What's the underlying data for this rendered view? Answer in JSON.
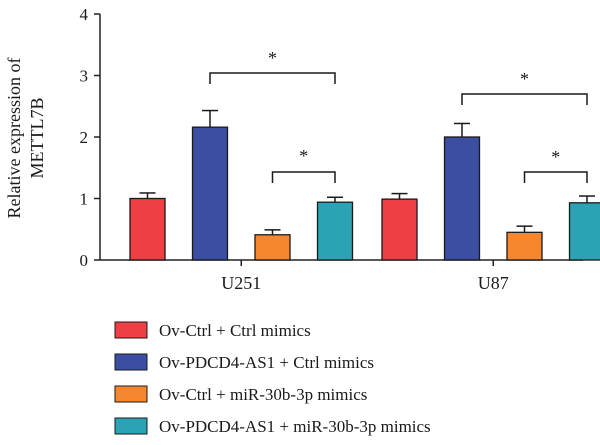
{
  "chart_data": {
    "type": "bar",
    "ylabel_lines": [
      "Relative expression of",
      "METTL7B"
    ],
    "ylim": [
      0,
      4
    ],
    "yticks": [
      "0",
      "1",
      "2",
      "3",
      "4"
    ],
    "categories": [
      "U251",
      "U87"
    ],
    "series": [
      {
        "name": "Ov-Ctrl + Ctrl mimics",
        "color": "#ee3f45",
        "values": [
          1.0,
          0.99
        ],
        "errors": [
          0.09,
          0.09
        ]
      },
      {
        "name": "Ov-PDCD4-AS1 + Ctrl mimics",
        "color": "#3b4ea2",
        "values": [
          2.16,
          2.0
        ],
        "errors": [
          0.27,
          0.22
        ]
      },
      {
        "name": "Ov-Ctrl + miR-30b-3p mimics",
        "color": "#f7872f",
        "values": [
          0.41,
          0.45
        ],
        "errors": [
          0.08,
          0.1
        ]
      },
      {
        "name": "Ov-PDCD4-AS1 + miR-30b-3p mimics",
        "color": "#2aa3b4",
        "values": [
          0.94,
          0.93
        ],
        "errors": [
          0.08,
          0.11
        ]
      }
    ],
    "significance": [
      {
        "category": 0,
        "from_series": 1,
        "to_series": 3,
        "label": "*"
      },
      {
        "category": 0,
        "from_series": 2,
        "to_series": 3,
        "label": "*"
      },
      {
        "category": 1,
        "from_series": 1,
        "to_series": 3,
        "label": "*"
      },
      {
        "category": 1,
        "from_series": 2,
        "to_series": 3,
        "label": "*"
      }
    ],
    "legend_position": "bottom",
    "grid": false
  }
}
